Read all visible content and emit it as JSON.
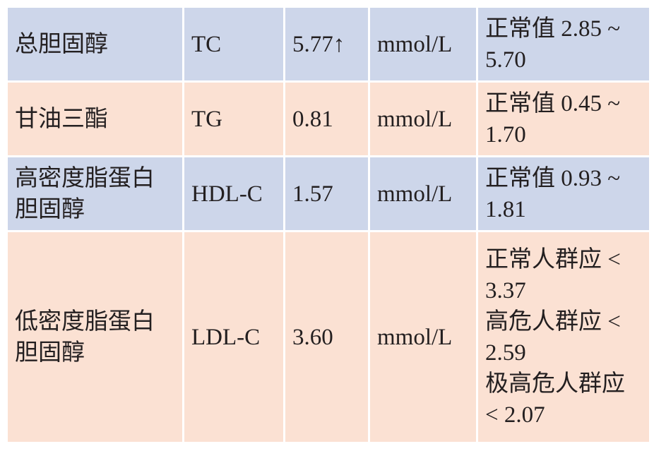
{
  "table": {
    "rows": [
      [
        "总胆固醇",
        "TC",
        "5.77↑",
        "mmol/L",
        [
          "正常值 2.85 ~ 5.70"
        ]
      ],
      [
        "甘油三酯",
        "TG",
        "0.81",
        "mmol/L",
        [
          "正常值 0.45 ~ 1.70"
        ]
      ],
      [
        "高密度脂蛋白胆固醇",
        "HDL-C",
        "1.57",
        "mmol/L",
        [
          "正常值 0.93 ~ 1.81"
        ]
      ],
      [
        "低密度脂蛋白胆固醇",
        "LDL-C",
        "3.60",
        "mmol/L",
        [
          "正常人群应 < 3.37",
          "高危人群应 < 2.59",
          "极高危人群应 < 2.07"
        ]
      ]
    ]
  }
}
